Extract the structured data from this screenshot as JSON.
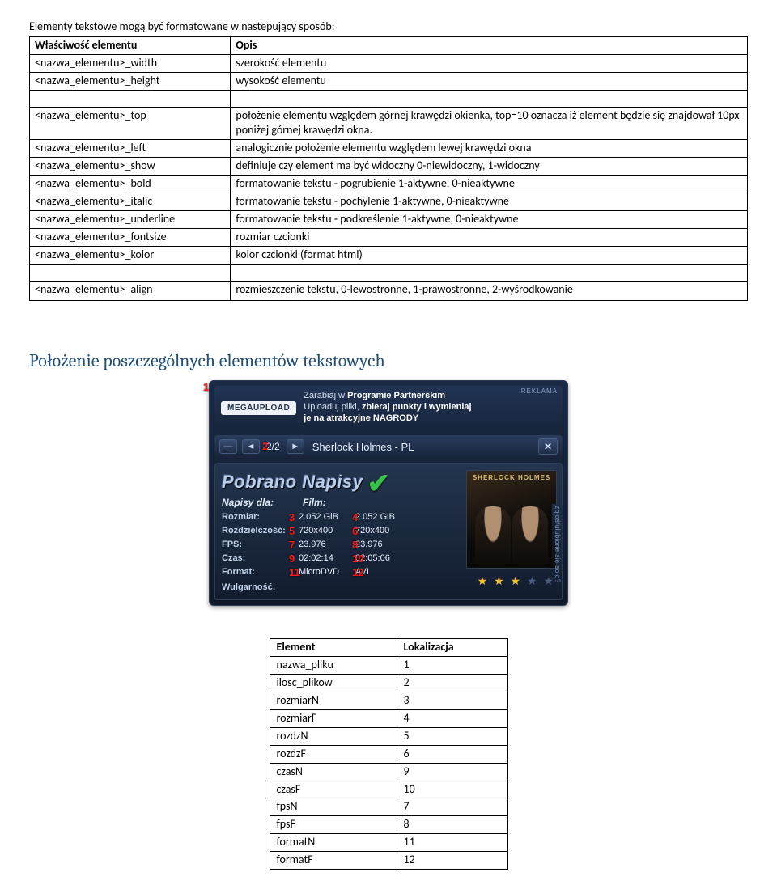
{
  "intro": "Elementy tekstowe mogą być formatowane w nastepujący sposób:",
  "props_header": {
    "c1": "Właściwość elementu",
    "c2": "Opis"
  },
  "props1": [
    {
      "c1": "<nazwa_elementu>_width",
      "c2": "szerokość elementu"
    },
    {
      "c1": "<nazwa_elementu>_height",
      "c2": "wysokość elementu"
    }
  ],
  "props2": [
    {
      "c1": "<nazwa_elementu>_top",
      "c2": "położenie elementu względem górnej krawędzi okienka, top=10 oznacza iż element będzie się znajdował 10px poniżej górnej krawędzi okna."
    },
    {
      "c1": "<nazwa_elementu>_left",
      "c2": "analogicznie położenie elementu względem lewej krawędzi okna"
    },
    {
      "c1": "<nazwa_elementu>_show",
      "c2": "definiuje czy element ma być widoczny 0-niewidoczny, 1-widoczny"
    },
    {
      "c1": "<nazwa_elementu>_bold",
      "c2": "formatowanie tekstu - pogrubienie 1-aktywne, 0-nieaktywne"
    },
    {
      "c1": "<nazwa_elementu>_italic",
      "c2": "formatowanie tekstu - pochylenie 1-aktywne, 0-nieaktywne"
    },
    {
      "c1": "<nazwa_elementu>_underline",
      "c2": "formatowanie tekstu - podkreślenie 1-aktywne, 0-nieaktywne"
    },
    {
      "c1": "<nazwa_elementu>_fontsize",
      "c2": "rozmiar czcionki"
    },
    {
      "c1": "<nazwa_elementu>_kolor",
      "c2": "kolor czcionki (format html)"
    }
  ],
  "props3": [
    {
      "c1": "<nazwa_elementu>_align",
      "c2": "rozmieszczenie tekstu, 0-lewostronne, 1-prawostronne, 2-wyśrodkowanie"
    },
    {
      "c1": "",
      "c2": ""
    }
  ],
  "section_heading": "Położenie poszczególnych elementów tekstowych",
  "ad": {
    "reklama": "REKLAMA",
    "logo": "MEGAUPLOAD",
    "line1a": "Zarabiaj w ",
    "line1b": "Programie Partnerskim",
    "line2a": "Uploaduj pliki, ",
    "line2b": "zbieraj punkty i wymieniaj",
    "line3": "je na atrakcyjne NAGRODY"
  },
  "titlebar": {
    "page": "2/2",
    "title": "Sherlock Holmes - PL",
    "red1": "2",
    "red1b": "1"
  },
  "panel": {
    "heading": "Pobrano Napisy",
    "sub_c1": "Napisy dla:",
    "sub_c2": "Film:",
    "poster_title": "SHERLOCK HOLMES",
    "side": "zgłoś/ulubione się soig?",
    "rows": [
      {
        "lbl": "Rozmiar:",
        "v1": "2.052 GiB",
        "n1": "3",
        "v2": "2.052 GiB",
        "n2": "4"
      },
      {
        "lbl": "Rozdzielczość:",
        "v1": "720x400",
        "n1": "5",
        "v2": "720x400",
        "n2": "6"
      },
      {
        "lbl": "FPS:",
        "v1": "23.976",
        "n1": "7",
        "v2": "23.976",
        "n2": "8"
      },
      {
        "lbl": "Czas:",
        "v1": "02:02:14",
        "n1": "9",
        "v2": "02:05:06",
        "n2": "10"
      },
      {
        "lbl": "Format:",
        "v1": "MicroDVD",
        "n1": "11",
        "v2": "AVI",
        "n2": "12"
      }
    ],
    "wulg": "Wulgarność:"
  },
  "elems_header": {
    "c1": "Element",
    "c2": "Lokalizacja"
  },
  "elems": [
    {
      "c1": "nazwa_pliku",
      "c2": "1"
    },
    {
      "c1": "ilosc_plikow",
      "c2": "2"
    },
    {
      "c1": "rozmiarN",
      "c2": "3"
    },
    {
      "c1": "rozmiarF",
      "c2": "4"
    },
    {
      "c1": "rozdzN",
      "c2": "5"
    },
    {
      "c1": "rozdzF",
      "c2": "6"
    },
    {
      "c1": "czasN",
      "c2": "9"
    },
    {
      "c1": "czasF",
      "c2": "10"
    },
    {
      "c1": "fpsN",
      "c2": "7"
    },
    {
      "c1": "fpsF",
      "c2": "8"
    },
    {
      "c1": "formatN",
      "c2": "11"
    },
    {
      "c1": "formatF",
      "c2": "12"
    }
  ]
}
